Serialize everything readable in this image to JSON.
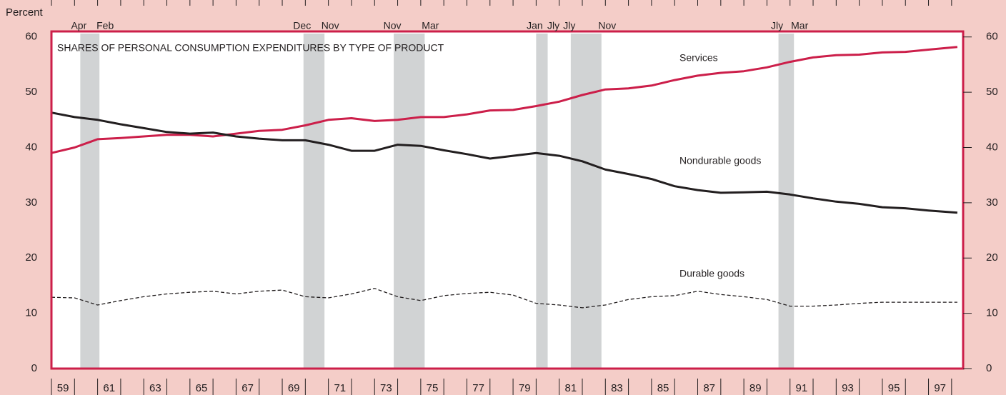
{
  "chart_data": {
    "type": "line",
    "title": "SHARES OF PERSONAL CONSUMPTION EXPENDITURES BY TYPE OF PRODUCT",
    "ylabel": "Percent",
    "ylim": [
      0,
      61
    ],
    "yticks": [
      0,
      10,
      20,
      30,
      40,
      50,
      60
    ],
    "xlim": [
      1959,
      1998.5
    ],
    "xticks": [
      1959,
      1960,
      1961,
      1962,
      1963,
      1964,
      1965,
      1966,
      1967,
      1968,
      1969,
      1970,
      1971,
      1972,
      1973,
      1974,
      1975,
      1976,
      1977,
      1978,
      1979,
      1980,
      1981,
      1982,
      1983,
      1984,
      1985,
      1986,
      1987,
      1988,
      1989,
      1990,
      1991,
      1992,
      1993,
      1994,
      1995,
      1996,
      1997,
      1998
    ],
    "xtick_labels": [
      {
        "value": 1959.5,
        "label": "59"
      },
      {
        "value": 1961.5,
        "label": "61"
      },
      {
        "value": 1963.5,
        "label": "63"
      },
      {
        "value": 1965.5,
        "label": "65"
      },
      {
        "value": 1967.5,
        "label": "67"
      },
      {
        "value": 1969.5,
        "label": "69"
      },
      {
        "value": 1971.5,
        "label": "71"
      },
      {
        "value": 1973.5,
        "label": "73"
      },
      {
        "value": 1975.5,
        "label": "75"
      },
      {
        "value": 1977.5,
        "label": "77"
      },
      {
        "value": 1979.5,
        "label": "79"
      },
      {
        "value": 1981.5,
        "label": "81"
      },
      {
        "value": 1983.5,
        "label": "83"
      },
      {
        "value": 1985.5,
        "label": "85"
      },
      {
        "value": 1987.5,
        "label": "87"
      },
      {
        "value": 1989.5,
        "label": "89"
      },
      {
        "value": 1991.5,
        "label": "91"
      },
      {
        "value": 1993.5,
        "label": "93"
      },
      {
        "value": 1995.5,
        "label": "95"
      },
      {
        "value": 1997.5,
        "label": "97"
      }
    ],
    "recessions": [
      {
        "start": 1960.25,
        "end": 1961.08,
        "start_label": "Apr",
        "end_label": "Feb"
      },
      {
        "start": 1969.92,
        "end": 1970.83,
        "start_label": "Dec",
        "end_label": "Nov"
      },
      {
        "start": 1973.83,
        "end": 1975.17,
        "start_label": "Nov",
        "end_label": "Mar"
      },
      {
        "start": 1980.0,
        "end": 1980.5,
        "start_label": "Jan",
        "end_label": "Jly"
      },
      {
        "start": 1981.5,
        "end": 1982.83,
        "start_label": "Jly",
        "end_label": "Nov"
      },
      {
        "start": 1990.5,
        "end": 1991.17,
        "start_label": "Jly",
        "end_label": "Mar"
      }
    ],
    "x": [
      1959,
      1960,
      1961,
      1962,
      1963,
      1964,
      1965,
      1966,
      1967,
      1968,
      1969,
      1970,
      1971,
      1972,
      1973,
      1974,
      1975,
      1976,
      1977,
      1978,
      1979,
      1980,
      1981,
      1982,
      1983,
      1984,
      1985,
      1986,
      1987,
      1988,
      1989,
      1990,
      1991,
      1992,
      1993,
      1994,
      1995,
      1996,
      1997,
      1998.25
    ],
    "series": [
      {
        "name": "Services",
        "color": "#cc1f4a",
        "dash": false,
        "values": [
          39,
          40,
          41.5,
          41.7,
          42,
          42.3,
          42.3,
          42,
          42.5,
          43,
          43.2,
          44,
          45,
          45.3,
          44.8,
          45,
          45.5,
          45.5,
          46,
          46.7,
          46.8,
          47.5,
          48.3,
          49.5,
          50.5,
          50.7,
          51.2,
          52.2,
          53,
          53.5,
          53.8,
          54.5,
          55.5,
          56.3,
          56.7,
          56.8,
          57.2,
          57.3,
          57.7,
          58.2
        ]
      },
      {
        "name": "Nondurable goods",
        "color": "#231f20",
        "dash": false,
        "values": [
          46.3,
          45.5,
          45,
          44.2,
          43.5,
          42.8,
          42.5,
          42.7,
          42,
          41.6,
          41.3,
          41.3,
          40.5,
          39.4,
          39.4,
          40.5,
          40.3,
          39.5,
          38.8,
          38,
          38.5,
          39,
          38.5,
          37.5,
          36,
          35.2,
          34.3,
          33,
          32.3,
          31.8,
          31.9,
          32,
          31.5,
          30.8,
          30.2,
          29.8,
          29.2,
          29,
          28.6,
          28.2
        ]
      },
      {
        "name": "Durable goods",
        "color": "#231f20",
        "dash": true,
        "values": [
          12.9,
          12.8,
          11.5,
          12.3,
          13,
          13.5,
          13.8,
          14,
          13.5,
          14,
          14.2,
          13,
          12.8,
          13.5,
          14.5,
          13,
          12.3,
          13.2,
          13.6,
          13.8,
          13.3,
          11.8,
          11.5,
          11,
          11.5,
          12.5,
          13,
          13.2,
          14,
          13.4,
          13,
          12.5,
          11.3,
          11.3,
          11.5,
          11.8,
          12,
          12,
          12,
          12
        ]
      }
    ]
  }
}
